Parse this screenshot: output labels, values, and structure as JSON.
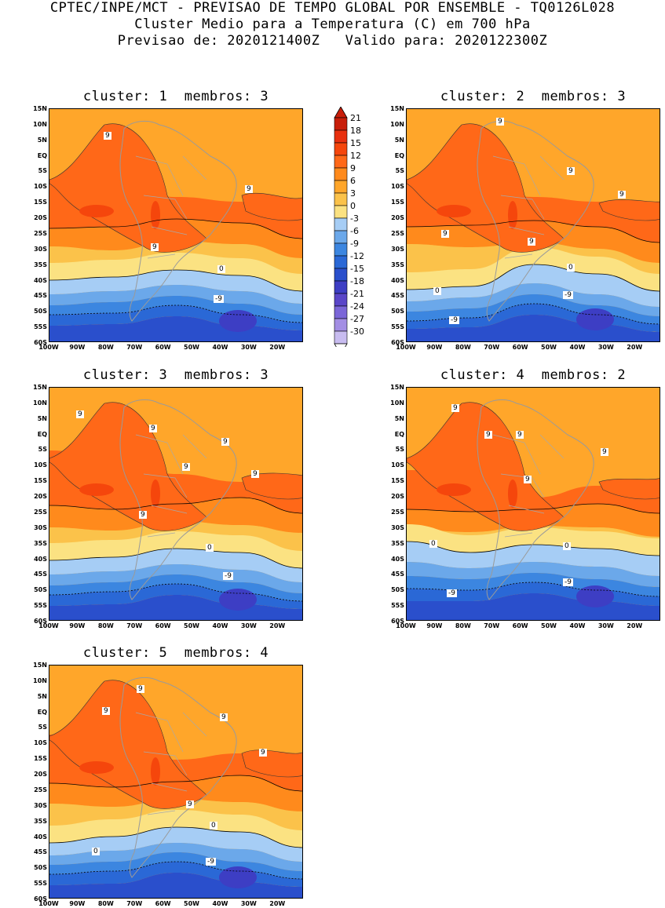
{
  "header": {
    "line1": "CPTEC/INPE/MCT - PREVISAO DE TEMPO GLOBAL POR ENSEMBLE - TQ0126L028",
    "line2": "Cluster Medio para a Temperatura (C) em 700 hPa",
    "line3": "Previsao de: 2020121400Z   Valido para: 2020122300Z"
  },
  "panels": [
    {
      "title": "cluster: 1  membros: 3"
    },
    {
      "title": "cluster: 2  membros: 3"
    },
    {
      "title": "cluster: 3  membros: 3"
    },
    {
      "title": "cluster: 4  membros: 2"
    },
    {
      "title": "cluster: 5  membros: 4"
    }
  ],
  "lat_ticks": [
    "15N",
    "10N",
    "5N",
    "EQ",
    "5S",
    "10S",
    "15S",
    "20S",
    "25S",
    "30S",
    "35S",
    "40S",
    "45S",
    "50S",
    "55S",
    "60S"
  ],
  "lon_ticks": [
    "100W",
    "90W",
    "80W",
    "70W",
    "60W",
    "50W",
    "40W",
    "30W",
    "20W"
  ],
  "contour_labels": {
    "zero": "0",
    "minus9": "-9",
    "nine": "9"
  },
  "colorbar": {
    "labels": [
      "21",
      "18",
      "15",
      "12",
      "9",
      "6",
      "3",
      "0",
      "-3",
      "-6",
      "-9",
      "-12",
      "-15",
      "-18",
      "-21",
      "-24",
      "-27",
      "-30"
    ],
    "colors": [
      "#c81e0a",
      "#e8300f",
      "#f5460c",
      "#ff6818",
      "#ff8a1c",
      "#ffa62a",
      "#fbc24a",
      "#fbe282",
      "#a6cdf5",
      "#6ba8ea",
      "#3c86e0",
      "#2a68d6",
      "#2a4fcc",
      "#3d3ec4",
      "#5a46c8",
      "#7b66d8",
      "#a38ee4",
      "#c8bcf0"
    ]
  },
  "chart_data": {
    "type": "heatmap",
    "variable": "Temperature at 700 hPa (C)",
    "region": {
      "lat": [
        "60S",
        "15N"
      ],
      "lon": [
        "100W",
        "20W"
      ]
    },
    "levels": [
      -30,
      -27,
      -24,
      -21,
      -18,
      -15,
      -12,
      -9,
      -6,
      -3,
      0,
      3,
      6,
      9,
      12,
      15,
      18,
      21
    ]
  }
}
